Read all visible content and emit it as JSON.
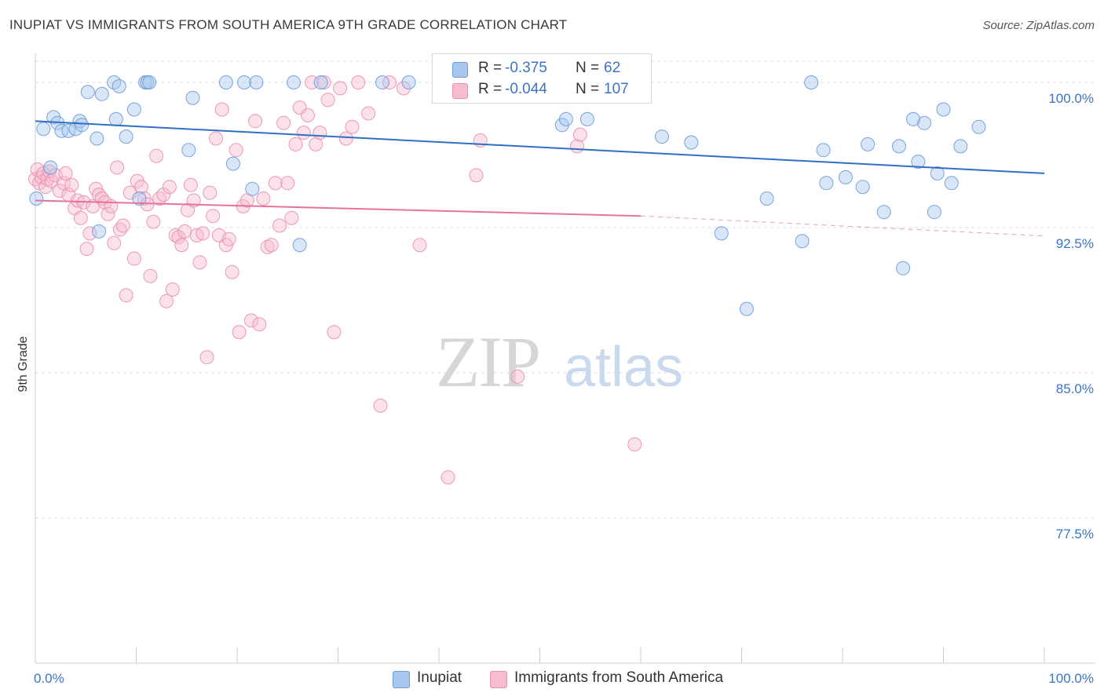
{
  "header": {
    "title": "INUPIAT VS IMMIGRANTS FROM SOUTH AMERICA 9TH GRADE CORRELATION CHART",
    "source": "Source: ZipAtlas.com"
  },
  "watermark": {
    "zip": "ZIP",
    "atlas": "atlas"
  },
  "legend_top": [
    {
      "r_label": "R =",
      "r_value": "-0.375",
      "n_label": "N =",
      "n_value": "62"
    },
    {
      "r_label": "R =",
      "r_value": "-0.044",
      "n_label": "N =",
      "n_value": "107"
    }
  ],
  "legend_bottom": [
    "Inupiat",
    "Immigrants from South America"
  ],
  "colors": {
    "blue_fill": "#a9c7ee",
    "blue_stroke": "#6c9bd9",
    "blue_line": "#2f6fc6",
    "pink_fill": "#f6bccf",
    "pink_stroke": "#ea8fad",
    "pink_line": "#e8739a",
    "axis_label": "#3b74c5",
    "grid": "#dcdcdc"
  },
  "chart_data": {
    "type": "scatter",
    "title": "INUPIAT VS IMMIGRANTS FROM SOUTH AMERICA 9TH GRADE CORRELATION CHART",
    "xlabel": "",
    "ylabel": "9th Grade",
    "xlim": [
      0,
      100
    ],
    "ylim": [
      70,
      101.5
    ],
    "x_tick_labels": [
      "0.0%",
      "100.0%"
    ],
    "y_ticks": [
      77.5,
      85.0,
      92.5,
      100.0
    ],
    "y_tick_labels": [
      "77.5%",
      "85.0%",
      "92.5%",
      "100.0%"
    ],
    "grid": true,
    "legend_placement": "bottom",
    "series": [
      {
        "name": "Inupiat",
        "r": -0.375,
        "n": 62,
        "trend": {
          "x": [
            0,
            100
          ],
          "y": [
            98.0,
            95.3
          ]
        },
        "points": [
          [
            0.1,
            94.0
          ],
          [
            0.8,
            97.6
          ],
          [
            1.5,
            95.6
          ],
          [
            1.8,
            98.2
          ],
          [
            2.2,
            97.9
          ],
          [
            2.6,
            97.5
          ],
          [
            3.3,
            97.5
          ],
          [
            4.0,
            97.6
          ],
          [
            4.4,
            98.0
          ],
          [
            4.6,
            97.8
          ],
          [
            5.2,
            99.5
          ],
          [
            6.1,
            97.1
          ],
          [
            6.3,
            92.3
          ],
          [
            6.6,
            99.4
          ],
          [
            7.8,
            100.0
          ],
          [
            8.0,
            98.1
          ],
          [
            8.3,
            99.8
          ],
          [
            9.0,
            97.2
          ],
          [
            9.8,
            98.6
          ],
          [
            10.3,
            94.0
          ],
          [
            10.9,
            100.0
          ],
          [
            11.1,
            100.0
          ],
          [
            11.3,
            100.0
          ],
          [
            15.6,
            99.2
          ],
          [
            15.2,
            96.5
          ],
          [
            18.9,
            100.0
          ],
          [
            19.6,
            95.8
          ],
          [
            20.7,
            100.0
          ],
          [
            21.5,
            94.5
          ],
          [
            21.9,
            100.0
          ],
          [
            25.6,
            100.0
          ],
          [
            26.2,
            91.6
          ],
          [
            28.3,
            100.0
          ],
          [
            34.4,
            100.0
          ],
          [
            37.0,
            100.0
          ],
          [
            52.2,
            97.8
          ],
          [
            52.6,
            98.1
          ],
          [
            54.7,
            98.1
          ],
          [
            62.1,
            97.2
          ],
          [
            65.0,
            96.9
          ],
          [
            68.0,
            92.2
          ],
          [
            70.5,
            88.3
          ],
          [
            72.5,
            94.0
          ],
          [
            76.0,
            91.8
          ],
          [
            76.9,
            100.0
          ],
          [
            78.1,
            96.5
          ],
          [
            78.4,
            94.8
          ],
          [
            80.3,
            95.1
          ],
          [
            82.0,
            94.6
          ],
          [
            82.5,
            96.8
          ],
          [
            84.1,
            93.3
          ],
          [
            85.6,
            96.7
          ],
          [
            86.0,
            90.4
          ],
          [
            87.5,
            95.9
          ],
          [
            88.1,
            97.9
          ],
          [
            89.1,
            93.3
          ],
          [
            89.4,
            95.3
          ],
          [
            90.0,
            98.6
          ],
          [
            90.8,
            94.8
          ],
          [
            91.7,
            96.7
          ],
          [
            87.0,
            98.1
          ],
          [
            93.5,
            97.7
          ]
        ]
      },
      {
        "name": "Immigrants from South America",
        "r": -0.044,
        "n": 107,
        "trend": {
          "x": [
            0,
            60
          ],
          "y": [
            93.9,
            93.1
          ]
        },
        "points": [
          [
            0.0,
            95.0
          ],
          [
            0.2,
            95.5
          ],
          [
            0.4,
            94.8
          ],
          [
            0.6,
            95.1
          ],
          [
            0.8,
            95.3
          ],
          [
            1.0,
            94.6
          ],
          [
            1.2,
            95.0
          ],
          [
            1.4,
            95.4
          ],
          [
            1.6,
            94.9
          ],
          [
            2.0,
            95.2
          ],
          [
            2.4,
            94.4
          ],
          [
            2.8,
            94.8
          ],
          [
            3.0,
            95.3
          ],
          [
            3.3,
            94.2
          ],
          [
            3.6,
            94.7
          ],
          [
            3.9,
            93.5
          ],
          [
            4.2,
            93.9
          ],
          [
            4.5,
            93.0
          ],
          [
            4.8,
            93.8
          ],
          [
            5.1,
            91.4
          ],
          [
            5.4,
            92.2
          ],
          [
            5.7,
            93.6
          ],
          [
            6.0,
            94.5
          ],
          [
            6.3,
            94.2
          ],
          [
            6.6,
            94.0
          ],
          [
            6.9,
            93.8
          ],
          [
            7.2,
            93.2
          ],
          [
            7.5,
            93.6
          ],
          [
            7.8,
            91.7
          ],
          [
            8.1,
            95.6
          ],
          [
            8.4,
            92.4
          ],
          [
            8.7,
            92.6
          ],
          [
            9.0,
            89.0
          ],
          [
            9.4,
            94.3
          ],
          [
            9.8,
            90.9
          ],
          [
            10.1,
            94.9
          ],
          [
            10.5,
            94.6
          ],
          [
            10.8,
            94.0
          ],
          [
            11.1,
            93.7
          ],
          [
            11.4,
            90.0
          ],
          [
            11.7,
            92.8
          ],
          [
            12.0,
            96.2
          ],
          [
            12.3,
            94.0
          ],
          [
            12.7,
            94.2
          ],
          [
            13.0,
            88.7
          ],
          [
            13.3,
            94.6
          ],
          [
            13.6,
            89.3
          ],
          [
            13.9,
            92.1
          ],
          [
            14.2,
            92.0
          ],
          [
            14.5,
            91.6
          ],
          [
            14.8,
            92.3
          ],
          [
            15.1,
            93.4
          ],
          [
            15.4,
            94.7
          ],
          [
            15.7,
            93.9
          ],
          [
            16.0,
            92.1
          ],
          [
            16.3,
            90.7
          ],
          [
            16.6,
            92.2
          ],
          [
            17.0,
            85.8
          ],
          [
            17.3,
            94.3
          ],
          [
            17.6,
            93.1
          ],
          [
            17.9,
            97.1
          ],
          [
            18.2,
            92.1
          ],
          [
            18.5,
            98.6
          ],
          [
            18.9,
            91.6
          ],
          [
            19.2,
            91.9
          ],
          [
            19.5,
            90.2
          ],
          [
            19.9,
            96.5
          ],
          [
            20.2,
            87.1
          ],
          [
            20.6,
            93.6
          ],
          [
            21.0,
            93.9
          ],
          [
            21.4,
            87.7
          ],
          [
            21.8,
            98.0
          ],
          [
            22.2,
            87.5
          ],
          [
            22.6,
            94.0
          ],
          [
            23.0,
            91.5
          ],
          [
            23.4,
            91.6
          ],
          [
            23.8,
            94.8
          ],
          [
            24.2,
            92.6
          ],
          [
            24.6,
            97.9
          ],
          [
            25.0,
            94.8
          ],
          [
            25.4,
            93.0
          ],
          [
            25.8,
            96.8
          ],
          [
            26.2,
            98.7
          ],
          [
            26.6,
            97.4
          ],
          [
            27.0,
            98.3
          ],
          [
            27.4,
            100.0
          ],
          [
            27.8,
            96.8
          ],
          [
            28.2,
            97.4
          ],
          [
            28.6,
            100.0
          ],
          [
            29.0,
            99.1
          ],
          [
            29.6,
            87.1
          ],
          [
            30.2,
            99.7
          ],
          [
            30.8,
            97.1
          ],
          [
            31.4,
            97.7
          ],
          [
            32.0,
            100.0
          ],
          [
            33.0,
            98.4
          ],
          [
            34.2,
            83.3
          ],
          [
            35.1,
            100.0
          ],
          [
            36.5,
            99.7
          ],
          [
            38.1,
            91.6
          ],
          [
            40.9,
            79.6
          ],
          [
            43.7,
            95.2
          ],
          [
            44.1,
            97.0
          ],
          [
            47.8,
            84.8
          ],
          [
            53.7,
            96.7
          ],
          [
            54.0,
            97.3
          ],
          [
            59.4,
            81.3
          ]
        ]
      }
    ]
  }
}
